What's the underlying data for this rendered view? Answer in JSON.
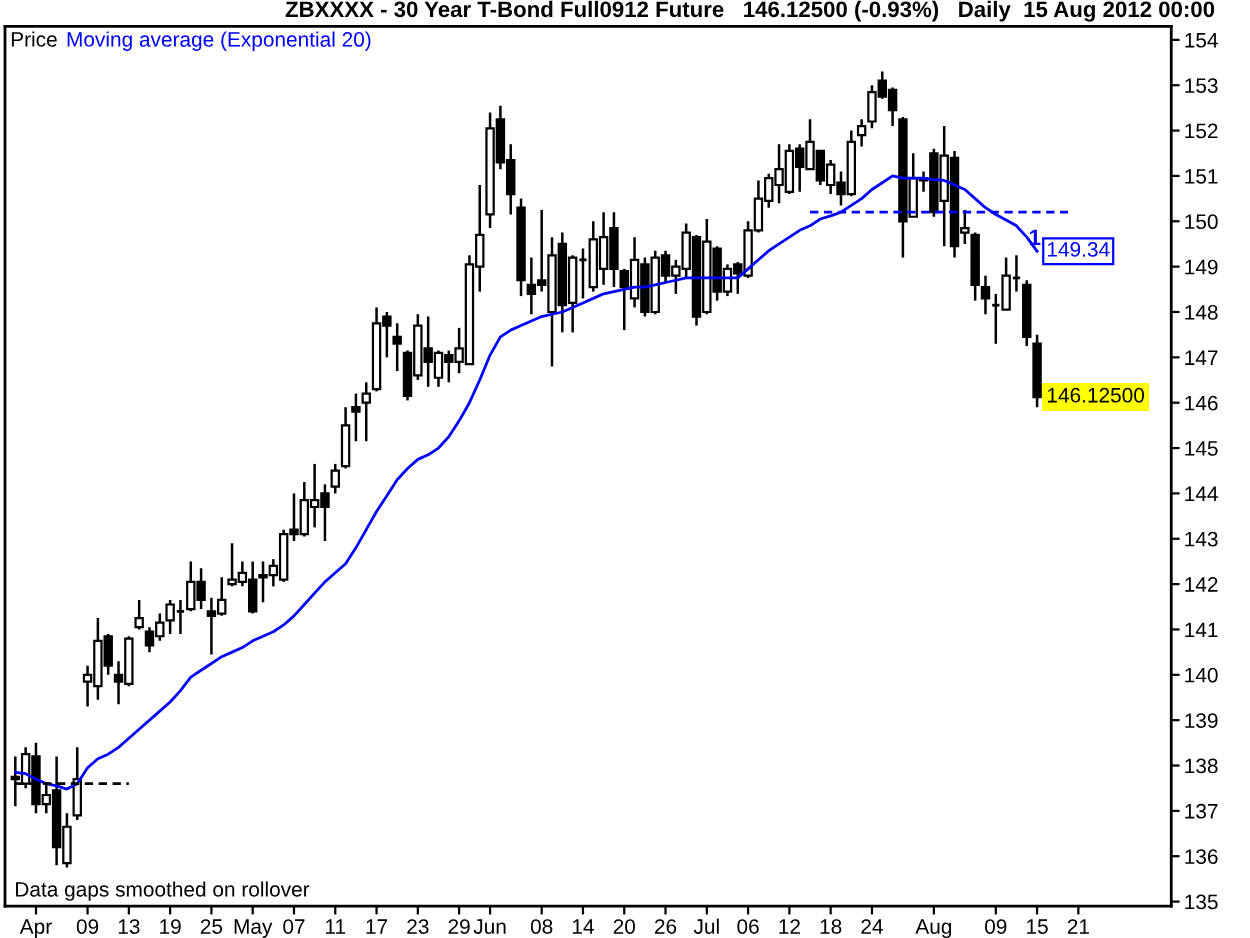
{
  "chart_data": {
    "type": "candlestick",
    "title": "ZBXXXX - 30 Year T-Bond Full0912 Future   146.12500 (-0.93%)   Daily  15 Aug 2012 00:00",
    "categories": [
      null,
      null,
      "Apr",
      null,
      null,
      null,
      null,
      "09",
      null,
      null,
      null,
      "13",
      null,
      null,
      null,
      "19",
      null,
      null,
      null,
      "25",
      null,
      null,
      null,
      "May",
      null,
      null,
      null,
      "07",
      null,
      null,
      null,
      "11",
      null,
      null,
      null,
      "17",
      null,
      null,
      null,
      "23",
      null,
      null,
      null,
      "29",
      null,
      null,
      "Jun",
      null,
      null,
      null,
      null,
      "08",
      null,
      null,
      null,
      "14",
      null,
      null,
      null,
      "20",
      null,
      null,
      null,
      "26",
      null,
      null,
      null,
      "Jul",
      null,
      null,
      null,
      "06",
      null,
      null,
      null,
      "12",
      null,
      null,
      null,
      "18",
      null,
      null,
      null,
      "24",
      null,
      null,
      null,
      null,
      null,
      "Aug",
      null,
      null,
      null,
      null,
      null,
      "09",
      null,
      null,
      null,
      "15",
      null,
      null,
      null,
      "21"
    ],
    "series": [
      {
        "name": "Price",
        "color": "#000000",
        "value_labels": [
          null,
          null,
          null,
          null,
          null,
          null,
          null,
          null,
          null,
          null,
          null,
          null,
          null,
          null,
          null,
          null,
          null,
          null,
          null,
          null,
          null,
          null,
          null,
          null,
          null,
          null,
          null,
          null,
          null,
          null,
          null,
          null,
          null,
          null,
          null,
          null,
          null,
          null,
          null,
          null,
          null,
          null,
          null,
          null,
          null,
          null,
          null,
          null,
          null,
          null,
          null,
          null,
          null,
          null,
          null,
          null,
          null,
          null,
          null,
          null,
          null,
          null,
          null,
          null,
          null,
          null,
          null,
          null,
          null,
          null,
          null,
          null,
          null,
          null,
          null,
          null,
          null,
          null,
          null,
          null,
          null,
          null,
          null,
          null,
          null,
          null,
          null,
          null,
          null,
          null,
          null,
          null,
          null,
          null,
          null,
          null,
          null,
          null,
          null,
          "146.12500",
          null,
          null,
          null,
          null
        ],
        "ohlc": [
          [
            137.75,
            138.2,
            137.1,
            137.7
          ],
          [
            137.6,
            138.4,
            137.5,
            138.25
          ],
          [
            138.2,
            138.5,
            136.95,
            137.15
          ],
          [
            137.15,
            137.6,
            136.95,
            137.35
          ],
          [
            137.45,
            138.2,
            135.8,
            136.2
          ],
          [
            135.85,
            136.95,
            135.75,
            136.65
          ],
          [
            136.9,
            138.4,
            136.8,
            137.7
          ],
          [
            139.85,
            140.2,
            139.3,
            140.0
          ],
          [
            139.75,
            141.25,
            139.45,
            140.75
          ],
          [
            140.85,
            140.9,
            140.0,
            140.2
          ],
          [
            140.0,
            140.3,
            139.35,
            139.85
          ],
          [
            139.8,
            140.85,
            139.75,
            140.8
          ],
          [
            141.05,
            141.65,
            141.0,
            141.25
          ],
          [
            140.95,
            141.05,
            140.5,
            140.65
          ],
          [
            140.85,
            141.35,
            140.75,
            141.15
          ],
          [
            141.2,
            141.65,
            140.9,
            141.55
          ],
          [
            141.4,
            141.65,
            140.9,
            141.4
          ],
          [
            141.45,
            142.5,
            141.4,
            142.05
          ],
          [
            142.05,
            142.35,
            141.45,
            141.65
          ],
          [
            141.4,
            141.7,
            140.45,
            141.3
          ],
          [
            141.35,
            142.15,
            141.3,
            141.65
          ],
          [
            142.0,
            142.9,
            141.95,
            142.1
          ],
          [
            142.05,
            142.5,
            141.95,
            142.25
          ],
          [
            142.1,
            142.5,
            141.35,
            141.4
          ],
          [
            142.15,
            142.5,
            141.6,
            142.2
          ],
          [
            142.2,
            142.55,
            141.95,
            142.4
          ],
          [
            142.1,
            143.2,
            142.05,
            143.1
          ],
          [
            143.2,
            144.0,
            142.95,
            143.1
          ],
          [
            143.1,
            144.25,
            143.05,
            143.85
          ],
          [
            143.7,
            144.65,
            143.25,
            143.85
          ],
          [
            144.0,
            144.2,
            142.95,
            143.7
          ],
          [
            144.15,
            144.65,
            144.0,
            144.5
          ],
          [
            144.6,
            145.9,
            144.55,
            145.5
          ],
          [
            145.9,
            146.2,
            145.15,
            145.8
          ],
          [
            146.0,
            146.45,
            145.15,
            146.2
          ],
          [
            146.3,
            148.1,
            146.25,
            147.75
          ],
          [
            147.9,
            148.0,
            147.0,
            147.7
          ],
          [
            147.45,
            147.75,
            146.7,
            147.3
          ],
          [
            147.1,
            147.15,
            146.05,
            146.15
          ],
          [
            146.6,
            147.95,
            146.5,
            147.7
          ],
          [
            147.2,
            147.9,
            146.35,
            146.9
          ],
          [
            146.55,
            147.15,
            146.35,
            147.1
          ],
          [
            147.05,
            147.15,
            146.45,
            146.9
          ],
          [
            146.9,
            147.65,
            146.65,
            147.2
          ],
          [
            146.85,
            149.25,
            146.85,
            149.05
          ],
          [
            149.0,
            150.8,
            148.45,
            149.7
          ],
          [
            150.15,
            152.4,
            149.85,
            152.05
          ],
          [
            152.25,
            152.55,
            151.15,
            151.3
          ],
          [
            151.35,
            151.7,
            150.15,
            150.6
          ],
          [
            150.3,
            150.5,
            148.35,
            148.7
          ],
          [
            148.6,
            149.2,
            147.95,
            148.4
          ],
          [
            148.7,
            150.25,
            148.45,
            148.6
          ],
          [
            148.0,
            149.65,
            146.8,
            149.25
          ],
          [
            149.5,
            149.75,
            147.55,
            148.15
          ],
          [
            148.2,
            149.25,
            147.55,
            149.2
          ],
          [
            149.15,
            149.4,
            148.3,
            149.15
          ],
          [
            148.55,
            150.0,
            148.45,
            149.6
          ],
          [
            148.95,
            150.2,
            148.6,
            149.65
          ],
          [
            149.85,
            150.2,
            148.55,
            148.95
          ],
          [
            148.9,
            148.95,
            147.6,
            148.55
          ],
          [
            148.3,
            149.65,
            148.1,
            149.15
          ],
          [
            149.05,
            149.2,
            147.9,
            148.0
          ],
          [
            148.0,
            149.35,
            147.95,
            149.2
          ],
          [
            149.25,
            149.35,
            148.65,
            148.8
          ],
          [
            148.8,
            149.15,
            148.4,
            149.0
          ],
          [
            148.95,
            149.95,
            148.75,
            149.75
          ],
          [
            149.65,
            149.7,
            147.7,
            147.9
          ],
          [
            148.0,
            150.05,
            147.95,
            149.55
          ],
          [
            149.4,
            149.45,
            148.25,
            148.45
          ],
          [
            148.45,
            149.05,
            148.35,
            148.95
          ],
          [
            149.05,
            149.1,
            148.4,
            148.85
          ],
          [
            148.8,
            150.0,
            148.75,
            149.8
          ],
          [
            149.8,
            150.9,
            149.75,
            150.5
          ],
          [
            150.45,
            151.05,
            150.3,
            150.95
          ],
          [
            150.8,
            151.7,
            150.4,
            151.15
          ],
          [
            150.65,
            151.7,
            150.6,
            151.55
          ],
          [
            151.6,
            151.7,
            150.65,
            151.2
          ],
          [
            151.15,
            152.25,
            151.15,
            151.75
          ],
          [
            151.55,
            151.55,
            150.8,
            150.9
          ],
          [
            150.8,
            151.35,
            150.6,
            151.25
          ],
          [
            150.85,
            151.1,
            150.35,
            150.6
          ],
          [
            150.6,
            152.0,
            150.55,
            151.75
          ],
          [
            151.9,
            152.25,
            151.65,
            152.1
          ],
          [
            152.2,
            153.0,
            152.05,
            152.85
          ],
          [
            153.1,
            153.3,
            152.7,
            152.75
          ],
          [
            152.9,
            152.95,
            152.1,
            152.45
          ],
          [
            152.25,
            152.3,
            149.2,
            150.0
          ],
          [
            150.1,
            151.5,
            150.1,
            150.95
          ],
          [
            150.9,
            151.1,
            150.65,
            150.95
          ],
          [
            151.5,
            151.6,
            150.1,
            150.2
          ],
          [
            150.45,
            152.1,
            149.45,
            151.45
          ],
          [
            151.4,
            151.55,
            149.2,
            149.45
          ],
          [
            149.75,
            150.25,
            149.5,
            149.85
          ],
          [
            149.7,
            149.75,
            148.25,
            148.6
          ],
          [
            148.55,
            148.8,
            147.95,
            148.3
          ],
          [
            148.15,
            148.4,
            147.3,
            148.15
          ],
          [
            148.05,
            149.2,
            148.05,
            148.8
          ],
          [
            148.75,
            149.25,
            148.45,
            148.75
          ],
          [
            148.6,
            148.7,
            147.25,
            147.45
          ],
          [
            147.3,
            147.5,
            145.9,
            146.125
          ],
          null,
          null,
          null,
          null
        ]
      },
      {
        "name": "Moving average (Exponential 20)",
        "type": "line",
        "color": "#0000ff",
        "values": [
          137.85,
          137.82,
          137.7,
          137.6,
          137.55,
          137.48,
          137.6,
          137.95,
          138.15,
          138.25,
          138.4,
          138.6,
          138.8,
          139.0,
          139.2,
          139.4,
          139.65,
          139.95,
          140.1,
          140.25,
          140.4,
          140.5,
          140.6,
          140.75,
          140.85,
          140.95,
          141.1,
          141.3,
          141.55,
          141.8,
          142.05,
          142.25,
          142.45,
          142.8,
          143.2,
          143.6,
          143.95,
          144.3,
          144.55,
          144.75,
          144.85,
          145.0,
          145.25,
          145.6,
          146.0,
          146.5,
          147.05,
          147.45,
          147.6,
          147.7,
          147.8,
          147.9,
          147.95,
          148.0,
          148.1,
          148.2,
          148.3,
          148.4,
          148.45,
          148.5,
          148.55,
          148.55,
          148.6,
          148.65,
          148.7,
          148.75,
          148.75,
          148.75,
          148.75,
          148.75,
          148.75,
          148.95,
          149.15,
          149.35,
          149.5,
          149.65,
          149.8,
          149.9,
          150.05,
          150.12,
          150.2,
          150.35,
          150.5,
          150.7,
          150.85,
          151.0,
          150.95,
          150.95,
          150.95,
          150.92,
          150.9,
          150.8,
          150.7,
          150.5,
          150.3,
          150.15,
          150.03,
          149.9,
          149.65,
          149.34,
          null,
          null,
          null,
          null
        ],
        "value_labels": [
          null,
          null,
          null,
          null,
          null,
          null,
          null,
          null,
          null,
          null,
          null,
          null,
          null,
          null,
          null,
          null,
          null,
          null,
          null,
          null,
          null,
          null,
          null,
          null,
          null,
          null,
          null,
          null,
          null,
          null,
          null,
          null,
          null,
          null,
          null,
          null,
          null,
          null,
          null,
          null,
          null,
          null,
          null,
          null,
          null,
          null,
          null,
          null,
          null,
          null,
          null,
          null,
          null,
          null,
          null,
          null,
          null,
          null,
          null,
          null,
          null,
          null,
          null,
          null,
          null,
          null,
          null,
          null,
          null,
          null,
          null,
          null,
          null,
          null,
          null,
          null,
          null,
          null,
          null,
          null,
          null,
          null,
          null,
          null,
          null,
          null,
          null,
          null,
          null,
          null,
          null,
          null,
          null,
          null,
          null,
          null,
          null,
          null,
          null,
          "149.34",
          null,
          null,
          null,
          null
        ]
      },
      {
        "type": "line",
        "color": "#000000",
        "line_style": "dashed",
        "values": [
          137.6,
          137.6,
          137.6,
          137.6,
          137.6,
          137.6,
          137.6,
          137.6,
          137.6,
          137.6,
          137.6,
          137.6,
          null,
          null,
          null,
          null,
          null,
          null,
          null,
          null,
          null,
          null,
          null,
          null,
          null,
          null,
          null,
          null,
          null,
          null,
          null,
          null,
          null,
          null,
          null,
          null,
          null,
          null,
          null,
          null,
          null,
          null,
          null,
          null,
          null,
          null,
          null,
          null,
          null,
          null,
          null,
          null,
          null,
          null,
          null,
          null,
          null,
          null,
          null,
          null,
          null,
          null,
          null,
          null,
          null,
          null,
          null,
          null,
          null,
          null,
          null,
          null,
          null,
          null,
          null,
          null,
          null,
          null,
          null,
          null,
          null,
          null,
          null,
          null,
          null,
          null,
          null,
          null,
          null,
          null,
          null,
          null,
          null,
          null,
          null,
          null,
          null,
          null,
          null,
          null,
          null,
          null,
          null,
          null
        ]
      },
      {
        "type": "line",
        "color": "#0000ff",
        "line_style": "dashed",
        "values": [
          null,
          null,
          null,
          null,
          null,
          null,
          null,
          null,
          null,
          null,
          null,
          null,
          null,
          null,
          null,
          null,
          null,
          null,
          null,
          null,
          null,
          null,
          null,
          null,
          null,
          null,
          null,
          null,
          null,
          null,
          null,
          null,
          null,
          null,
          null,
          null,
          null,
          null,
          null,
          null,
          null,
          null,
          null,
          null,
          null,
          null,
          null,
          null,
          null,
          null,
          null,
          null,
          null,
          null,
          null,
          null,
          null,
          null,
          null,
          null,
          null,
          null,
          null,
          null,
          null,
          null,
          null,
          null,
          null,
          null,
          null,
          null,
          null,
          null,
          null,
          null,
          null,
          150.2,
          150.2,
          150.2,
          150.2,
          150.2,
          150.2,
          150.2,
          150.2,
          150.2,
          150.2,
          150.2,
          150.2,
          150.2,
          150.2,
          150.2,
          150.2,
          150.2,
          150.2,
          150.2,
          150.2,
          150.2,
          150.2,
          150.2,
          150.2,
          150.2,
          150.2,
          null
        ]
      }
    ],
    "ylim": [
      134.9,
      154.3
    ],
    "yticks": [
      135,
      136,
      137,
      138,
      139,
      140,
      141,
      142,
      143,
      144,
      145,
      146,
      147,
      148,
      149,
      150,
      151,
      152,
      153,
      154
    ],
    "legend": "top left",
    "annotations": [
      "Data gaps smoothed on rollover",
      "1"
    ]
  }
}
